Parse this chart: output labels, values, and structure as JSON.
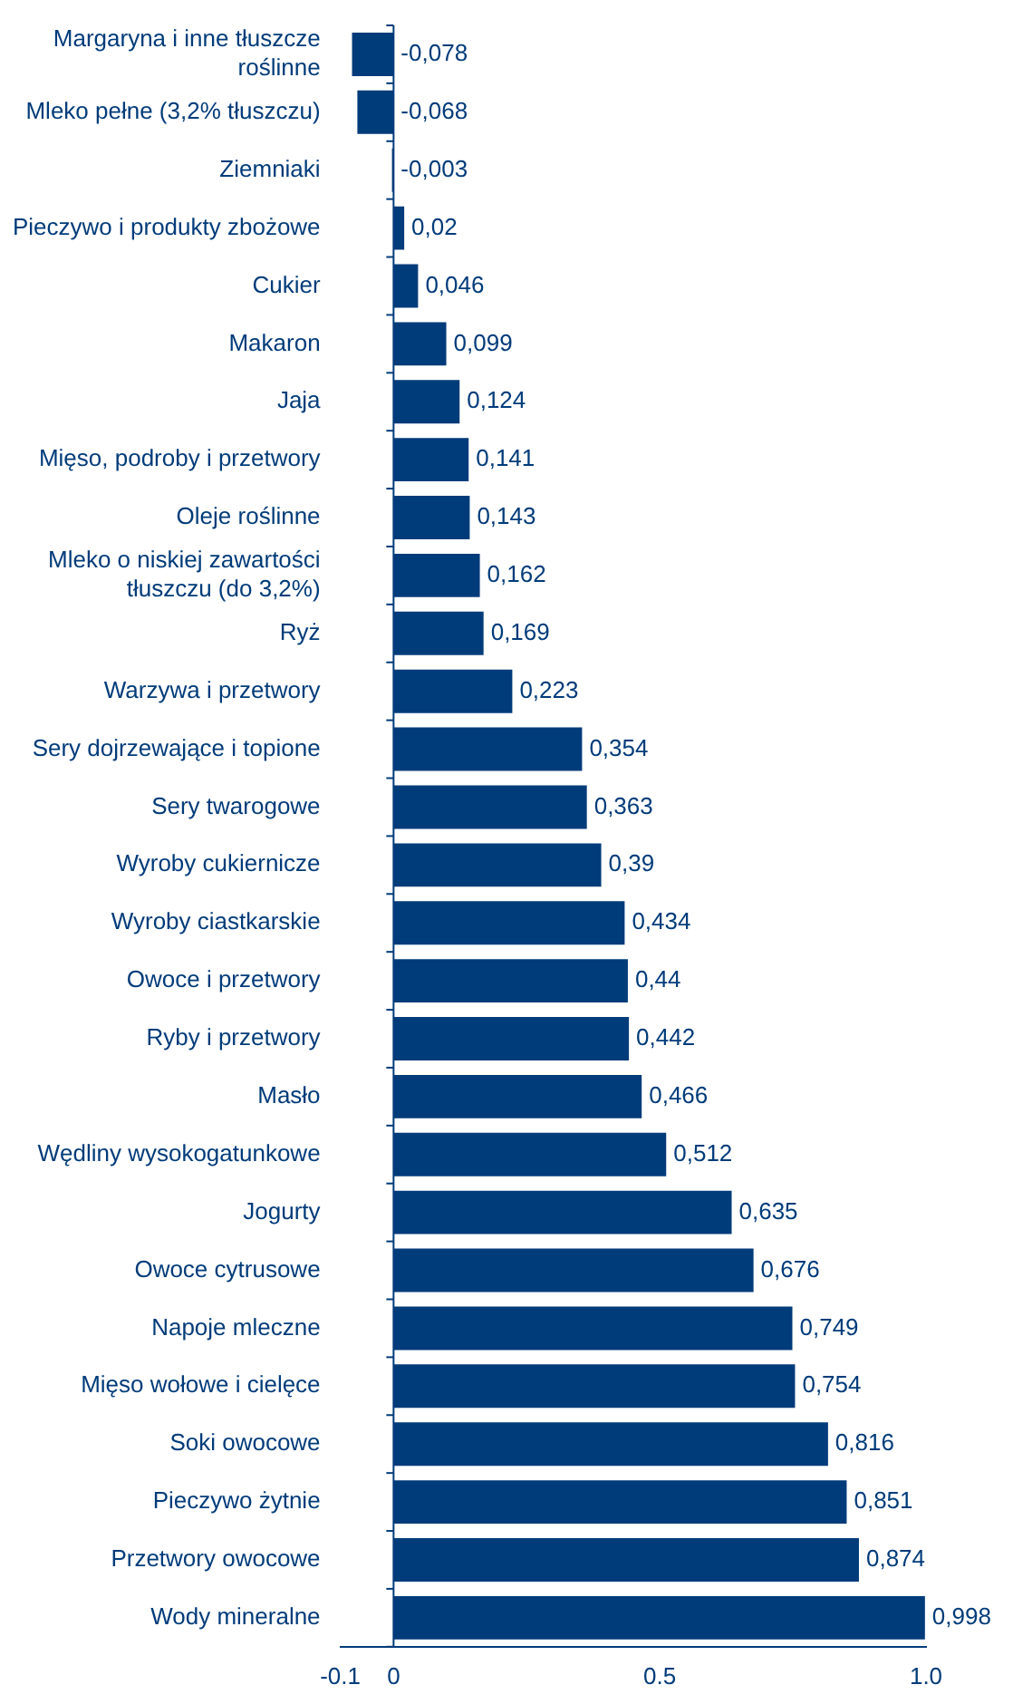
{
  "chart_data": {
    "type": "bar",
    "orientation": "horizontal",
    "categories": [
      "Margaryna i inne tłuszcze roślinne",
      "Mleko pełne (3,2% tłuszczu)",
      "Ziemniaki",
      "Pieczywo i produkty zbożowe",
      "Cukier",
      "Makaron",
      "Jaja",
      "Mięso, podroby i przetwory",
      "Oleje roślinne",
      "Mleko o niskiej zawartości tłuszczu (do 3,2%)",
      "Ryż",
      "Warzywa i przetwory",
      "Sery dojrzewające i topione",
      "Sery twarogowe",
      "Wyroby cukiernicze",
      "Wyroby ciastkarskie",
      "Owoce i przetwory",
      "Ryby i przetwory",
      "Masło",
      "Wędliny wysokogatunkowe",
      "Jogurty",
      "Owoce cytrusowe",
      "Napoje mleczne",
      "Mięso wołowe i cielęce",
      "Soki owocowe",
      "Pieczywo żytnie",
      "Przetwory owocowe",
      "Wody mineralne"
    ],
    "values": [
      -0.078,
      -0.068,
      -0.003,
      0.02,
      0.046,
      0.099,
      0.124,
      0.141,
      0.143,
      0.162,
      0.169,
      0.223,
      0.354,
      0.363,
      0.39,
      0.434,
      0.44,
      0.442,
      0.466,
      0.512,
      0.635,
      0.676,
      0.749,
      0.754,
      0.816,
      0.851,
      0.874,
      0.998
    ],
    "value_labels": [
      "-0,078",
      "-0,068",
      "-0,003",
      "0,02",
      "0,046",
      "0,099",
      "0,124",
      "0,141",
      "0,143",
      "0,162",
      "0,169",
      "0,223",
      "0,354",
      "0,363",
      "0,39",
      "0,434",
      "0,44",
      "0,442",
      "0,466",
      "0,512",
      "0,635",
      "0,676",
      "0,749",
      "0,754",
      "0,816",
      "0,851",
      "0,874",
      "0,998"
    ],
    "color": "#003b7a",
    "xlim": [
      -0.1,
      1.0
    ],
    "xticks": [
      -0.1,
      0,
      0.5,
      {
        "value": 1.0,
        "label": "1.0"
      }
    ],
    "ref_lines": [
      {
        "axis": "x",
        "value": 0,
        "color": "#003b7a"
      }
    ],
    "grid": false,
    "legend": false
  }
}
